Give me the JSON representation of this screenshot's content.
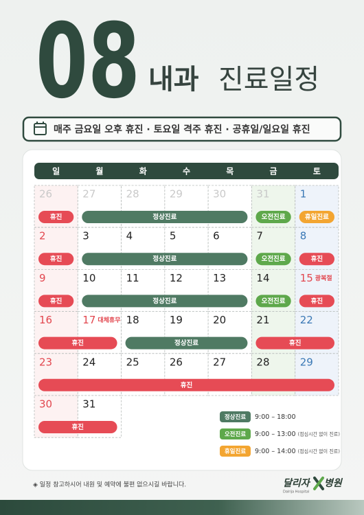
{
  "header": {
    "month": "08",
    "title_bold": "내과",
    "title": "진료일정"
  },
  "notice": "매주 금요일 오후 휴진 · 토요일 격주 휴진 · 공휴일/일요일 휴진",
  "calendar": {
    "weekdays": [
      "일",
      "월",
      "화",
      "수",
      "목",
      "금",
      "토"
    ],
    "event_colors": {
      "휴진": "#e64b55",
      "정상진료": "#4f7a63",
      "오전진료": "#5ea84b",
      "휴일진료": "#f3a531"
    },
    "weeks": [
      {
        "days": [
          {
            "date": "26",
            "color": "#c9c9c9"
          },
          {
            "date": "27",
            "color": "#c9c9c9"
          },
          {
            "date": "28",
            "color": "#c9c9c9"
          },
          {
            "date": "29",
            "color": "#c9c9c9"
          },
          {
            "date": "30",
            "color": "#c9c9c9"
          },
          {
            "date": "31",
            "color": "#c9c9c9"
          },
          {
            "date": "1",
            "color": "#3a78b5"
          }
        ],
        "events": [
          {
            "label": "휴진",
            "from": "26",
            "to": "26"
          },
          {
            "label": "정상진료",
            "from": "27",
            "to": "30"
          },
          {
            "label": "오전진료",
            "from": "31",
            "to": "31"
          },
          {
            "label": "휴일진료",
            "from": "1",
            "to": "1"
          }
        ]
      },
      {
        "days": [
          {
            "date": "2",
            "color": "#e2474f"
          },
          {
            "date": "3",
            "color": "#222222"
          },
          {
            "date": "4",
            "color": "#222222"
          },
          {
            "date": "5",
            "color": "#222222"
          },
          {
            "date": "6",
            "color": "#222222"
          },
          {
            "date": "7",
            "color": "#222222"
          },
          {
            "date": "8",
            "color": "#3a78b5"
          }
        ],
        "events": [
          {
            "label": "휴진",
            "from": "2",
            "to": "2"
          },
          {
            "label": "정상진료",
            "from": "3",
            "to": "6"
          },
          {
            "label": "오전진료",
            "from": "7",
            "to": "7"
          },
          {
            "label": "휴진",
            "from": "8",
            "to": "8"
          }
        ]
      },
      {
        "days": [
          {
            "date": "9",
            "color": "#e2474f"
          },
          {
            "date": "10",
            "color": "#222222"
          },
          {
            "date": "11",
            "color": "#222222"
          },
          {
            "date": "12",
            "color": "#222222"
          },
          {
            "date": "13",
            "color": "#222222"
          },
          {
            "date": "14",
            "color": "#222222"
          },
          {
            "date": "15",
            "color": "#e2474f",
            "note": "광복절"
          }
        ],
        "events": [
          {
            "label": "휴진",
            "from": "9",
            "to": "9"
          },
          {
            "label": "정상진료",
            "from": "10",
            "to": "13"
          },
          {
            "label": "오전진료",
            "from": "14",
            "to": "14"
          },
          {
            "label": "휴진",
            "from": "15",
            "to": "15"
          }
        ]
      },
      {
        "days": [
          {
            "date": "16",
            "color": "#e2474f"
          },
          {
            "date": "17",
            "color": "#e2474f",
            "note": "대체휴무"
          },
          {
            "date": "18",
            "color": "#222222"
          },
          {
            "date": "19",
            "color": "#222222"
          },
          {
            "date": "20",
            "color": "#222222"
          },
          {
            "date": "21",
            "color": "#222222"
          },
          {
            "date": "22",
            "color": "#3a78b5"
          }
        ],
        "events": [
          {
            "label": "휴진",
            "from": "16",
            "to": "17"
          },
          {
            "label": "정상진료",
            "from": "18",
            "to": "20"
          },
          {
            "label": "휴진",
            "from": "21",
            "to": "22"
          }
        ]
      },
      {
        "days": [
          {
            "date": "23",
            "color": "#e2474f"
          },
          {
            "date": "24",
            "color": "#222222"
          },
          {
            "date": "25",
            "color": "#222222"
          },
          {
            "date": "26",
            "color": "#222222"
          },
          {
            "date": "27",
            "color": "#222222"
          },
          {
            "date": "28",
            "color": "#222222"
          },
          {
            "date": "29",
            "color": "#3a78b5"
          }
        ],
        "events": [
          {
            "label": "휴진",
            "from": "23",
            "to": "29"
          }
        ]
      },
      {
        "days": [
          {
            "date": "30",
            "color": "#e2474f"
          },
          {
            "date": "31",
            "color": "#222222"
          }
        ],
        "events": [
          {
            "label": "휴진",
            "from": "30",
            "to": "31"
          }
        ]
      }
    ]
  },
  "legend": [
    {
      "label": "정상진료",
      "color": "#4f7a63",
      "hours": "9:00 – 18:00"
    },
    {
      "label": "오전진료",
      "color": "#5ea84b",
      "hours": "9:00 – 13:00",
      "note": "(점심시간 없이 진료)"
    },
    {
      "label": "휴일진료",
      "color": "#f3a531",
      "hours": "9:00 – 14:00",
      "note": "(점심시간 없이 진료)"
    }
  ],
  "footer": {
    "message": "◈ 일정 참고하시어 내원 및 예약에 불편 없으시길 바랍니다.",
    "logo_left": "달리자",
    "logo_right": "병원",
    "logo_sub": "Dalrija Hospital"
  }
}
